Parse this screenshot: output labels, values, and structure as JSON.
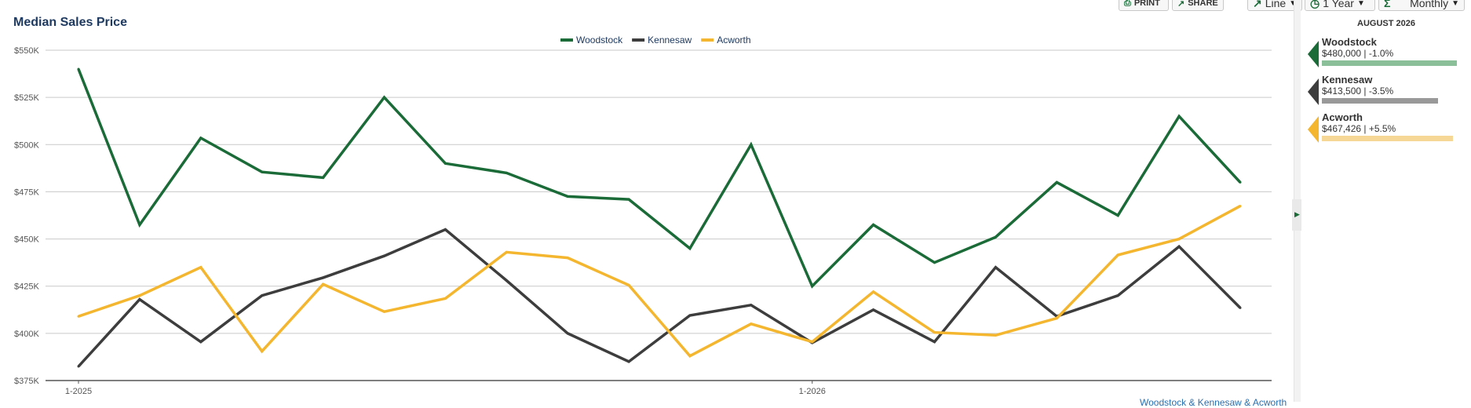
{
  "toolbar": {
    "print_label": "PRINT",
    "share_label": "SHARE",
    "chart_type": "Line",
    "range": "1 Year",
    "interval": "Monthly"
  },
  "side_panel": {
    "title": "AUGUST 2026",
    "entries": [
      {
        "name": "Woodstock",
        "value": "$480,000 | -1.0%",
        "color": "#1a6b37",
        "bar_color": "#8bbf99",
        "bar_fraction": 1.0
      },
      {
        "name": "Kennesaw",
        "value": "$413,500 | -3.5%",
        "color": "#3d3d3d",
        "bar_color": "#999999",
        "bar_fraction": 0.86
      },
      {
        "name": "Acworth",
        "value": "$467,426 | +5.5%",
        "color": "#f4b62e",
        "bar_color": "#f7d795",
        "bar_fraction": 0.97
      }
    ]
  },
  "footer": {
    "link_text": "Woodstock & Kennesaw & Acworth"
  },
  "chart_data": {
    "type": "line",
    "title": "Median Sales Price",
    "xlabel": "",
    "ylabel": "",
    "x": [
      "1-2025",
      "2-2025",
      "3-2025",
      "4-2025",
      "5-2025",
      "6-2025",
      "7-2025",
      "8-2025",
      "9-2025",
      "10-2025",
      "11-2025",
      "12-2025",
      "1-2026",
      "2-2026",
      "3-2026",
      "4-2026",
      "5-2026",
      "6-2026",
      "7-2026",
      "8-2026"
    ],
    "x_tick_labels": [
      {
        "label": "1-2025",
        "index": 0
      },
      {
        "label": "1-2026",
        "index": 12
      }
    ],
    "y_ticks": [
      375000,
      400000,
      425000,
      450000,
      475000,
      500000,
      525000,
      550000
    ],
    "y_tick_labels": [
      "$375K",
      "$400K",
      "$425K",
      "$450K",
      "$475K",
      "$500K",
      "$525K",
      "$550K"
    ],
    "ylim": [
      375000,
      550000
    ],
    "grid": true,
    "legend_position": "top-center",
    "series": [
      {
        "name": "Woodstock",
        "color": "#1a6b37",
        "values": [
          540000,
          457500,
          503500,
          485500,
          482500,
          525000,
          490000,
          485000,
          472500,
          471000,
          445000,
          500000,
          425000,
          457500,
          437500,
          451000,
          480000,
          462500,
          515000,
          480000
        ]
      },
      {
        "name": "Kennesaw",
        "color": "#3d3d3d",
        "values": [
          382500,
          418000,
          395500,
          420000,
          429500,
          441000,
          455000,
          428000,
          400000,
          385000,
          409500,
          415000,
          395000,
          412500,
          395500,
          435000,
          409000,
          420000,
          446000,
          413500
        ]
      },
      {
        "name": "Acworth",
        "color": "#f4b62e",
        "values": [
          409000,
          420000,
          435000,
          390500,
          426000,
          411500,
          418500,
          443000,
          440000,
          425500,
          388000,
          405000,
          395500,
          422000,
          400500,
          399000,
          408000,
          441500,
          450000,
          467426
        ]
      }
    ]
  }
}
